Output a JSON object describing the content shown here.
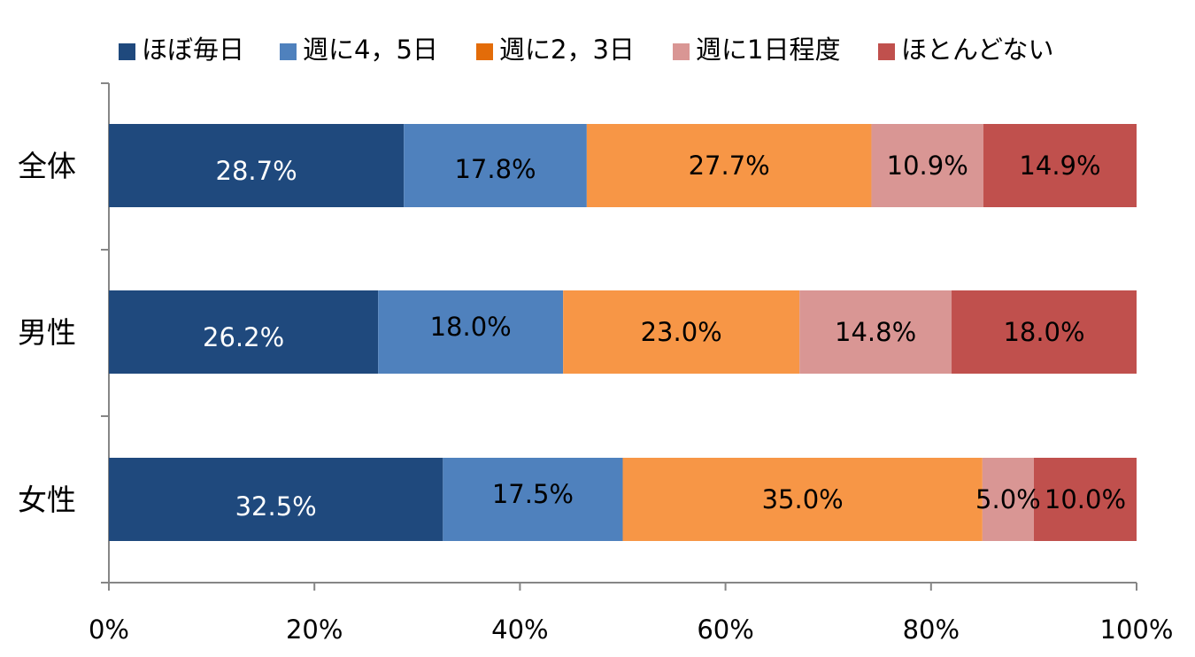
{
  "chart_data": {
    "type": "bar",
    "orientation": "horizontal",
    "stacked": true,
    "percent_scale": true,
    "categories": [
      "全体",
      "男性",
      "女性"
    ],
    "series": [
      {
        "name": "ほぼ毎日",
        "values": [
          28.7,
          26.2,
          32.5
        ],
        "color": "#1F497D",
        "label_color": "#ffffff"
      },
      {
        "name": "週に4，5日",
        "values": [
          17.8,
          18.0,
          17.5
        ],
        "color": "#4F81BD",
        "label_color": "#000000"
      },
      {
        "name": "週に2，3日",
        "values": [
          27.7,
          23.0,
          35.0
        ],
        "color": "#F79646",
        "legend_color": "#E36C09",
        "label_color": "#000000"
      },
      {
        "name": "週に1日程度",
        "values": [
          10.9,
          14.8,
          5.0
        ],
        "color": "#D99694",
        "label_color": "#000000"
      },
      {
        "name": "ほとんどない",
        "values": [
          14.9,
          18.0,
          10.0
        ],
        "color": "#C0504D",
        "label_color": "#000000"
      }
    ],
    "data_labels": [
      [
        "28.7%",
        "17.8%",
        "27.7%",
        "10.9%",
        "14.9%"
      ],
      [
        "26.2%",
        "18.0%",
        "23.0%",
        "14.8%",
        "18.0%"
      ],
      [
        "32.5%",
        "17.5%",
        "35.0%",
        "5.0%",
        "10.0%"
      ]
    ],
    "xlim": [
      0,
      100
    ],
    "x_ticks": [
      0,
      20,
      40,
      60,
      80,
      100
    ],
    "x_tick_labels": [
      "0%",
      "20%",
      "40%",
      "60%",
      "80%",
      "100%"
    ],
    "grid": false,
    "legend_position": "top"
  }
}
